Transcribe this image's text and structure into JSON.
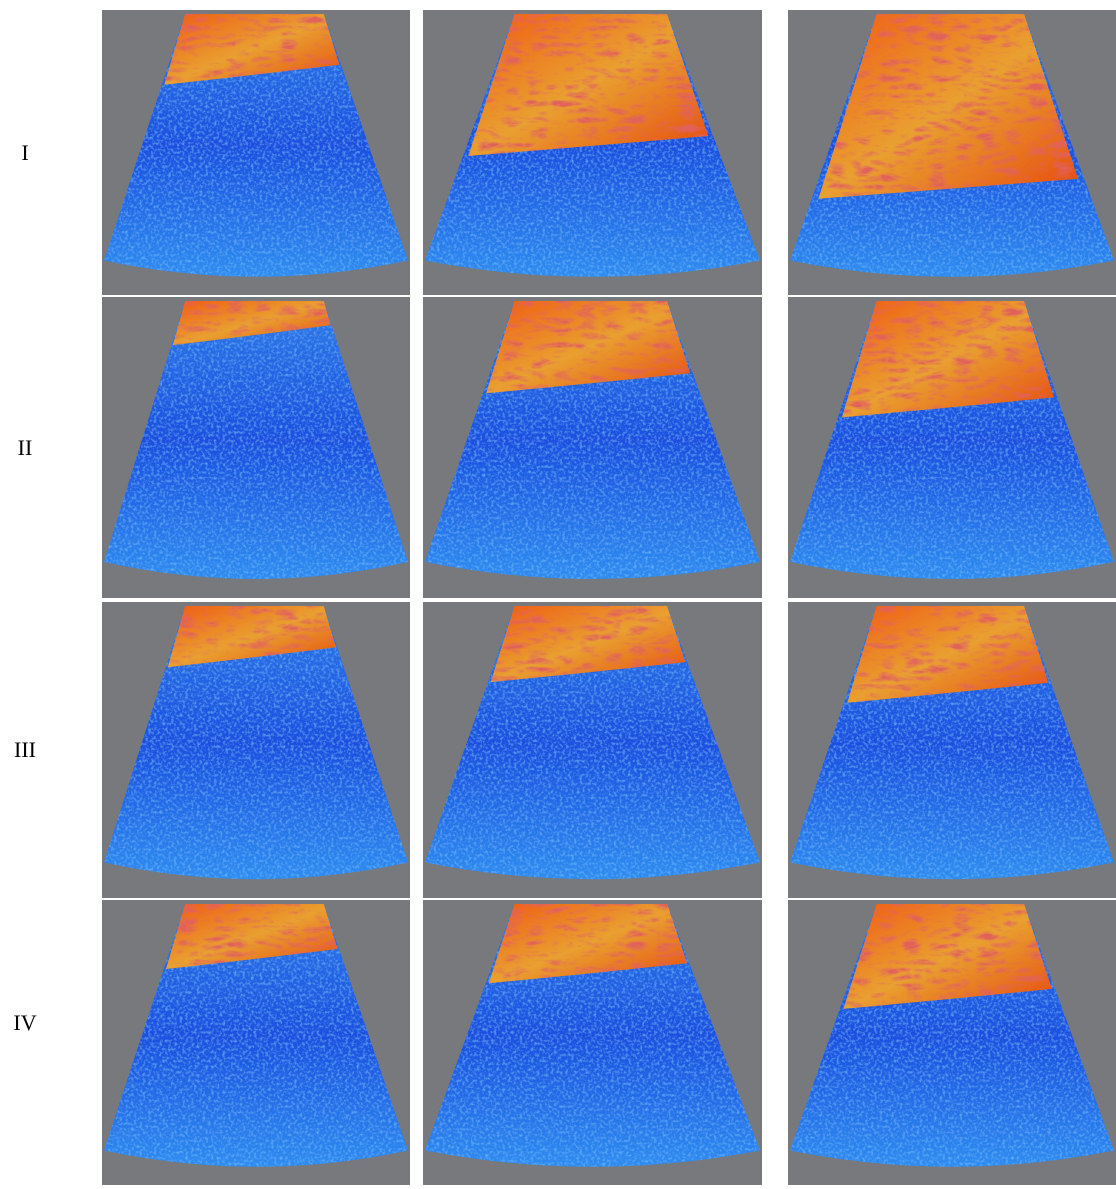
{
  "rows": [
    {
      "label": "I"
    },
    {
      "label": "II"
    },
    {
      "label": "III"
    },
    {
      "label": "IV"
    }
  ]
}
